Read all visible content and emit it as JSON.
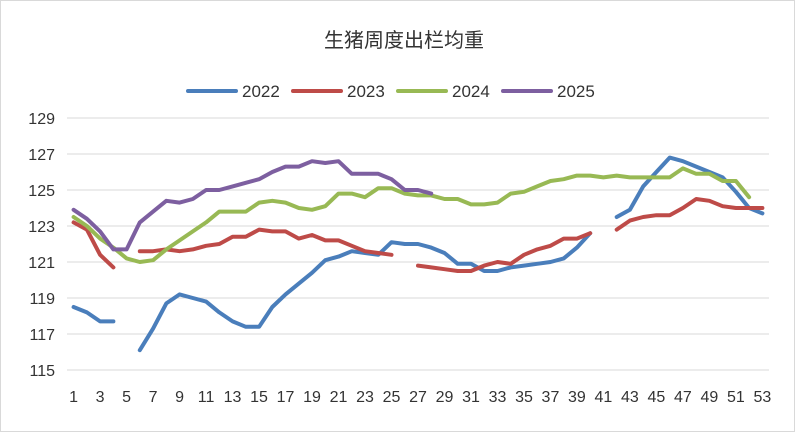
{
  "chart_data": {
    "type": "line",
    "title": "生猪周度出栏均重",
    "xlabel": "",
    "ylabel": "",
    "ylim": [
      115,
      129
    ],
    "yticks": [
      115,
      117,
      119,
      121,
      123,
      125,
      127,
      129
    ],
    "xlim": [
      1,
      53
    ],
    "xticks": [
      1,
      3,
      5,
      7,
      9,
      11,
      13,
      15,
      17,
      19,
      21,
      23,
      25,
      27,
      29,
      31,
      33,
      35,
      37,
      39,
      41,
      43,
      45,
      47,
      49,
      51,
      53
    ],
    "grid": true,
    "legend_position": "top",
    "series": [
      {
        "name": "2022",
        "color": "#4a7ebb",
        "values": [
          null,
          118.5,
          118.2,
          117.7,
          117.7,
          null,
          116.1,
          117.3,
          118.7,
          119.2,
          119.0,
          118.8,
          118.2,
          117.7,
          117.4,
          117.4,
          118.5,
          119.2,
          119.8,
          120.4,
          121.1,
          121.3,
          121.6,
          121.5,
          121.4,
          122.1,
          122.0,
          122.0,
          121.8,
          121.5,
          120.9,
          120.9,
          120.5,
          120.5,
          120.7,
          120.8,
          120.9,
          121.0,
          121.2,
          121.8,
          122.6,
          null,
          123.5,
          123.9,
          125.2,
          126.0,
          126.8,
          126.6,
          126.3,
          126.0,
          125.7,
          124.9,
          124.0,
          123.7
        ]
      },
      {
        "name": "2023",
        "color": "#be4b48",
        "values": [
          null,
          123.2,
          122.8,
          121.4,
          120.7,
          null,
          121.6,
          121.6,
          121.7,
          121.6,
          121.7,
          121.9,
          122.0,
          122.4,
          122.4,
          122.8,
          122.7,
          122.7,
          122.3,
          122.5,
          122.2,
          122.2,
          121.9,
          121.6,
          121.5,
          121.4,
          null,
          120.8,
          120.7,
          120.6,
          120.5,
          120.5,
          120.8,
          121.0,
          120.9,
          121.4,
          121.7,
          121.9,
          122.3,
          122.3,
          122.6,
          null,
          122.8,
          123.3,
          123.5,
          123.6,
          123.6,
          124.0,
          124.5,
          124.4,
          124.1,
          124.0,
          124.0,
          124.0
        ]
      },
      {
        "name": "2024",
        "color": "#98b954",
        "values": [
          null,
          123.5,
          123.0,
          122.3,
          121.8,
          121.2,
          121.0,
          121.1,
          121.7,
          122.2,
          122.7,
          123.2,
          123.8,
          123.8,
          123.8,
          124.3,
          124.4,
          124.3,
          124.0,
          123.9,
          124.1,
          124.8,
          124.8,
          124.6,
          125.1,
          125.1,
          124.8,
          124.7,
          124.7,
          124.5,
          124.5,
          124.2,
          124.2,
          124.3,
          124.8,
          124.9,
          125.2,
          125.5,
          125.6,
          125.8,
          125.8,
          125.7,
          125.8,
          125.7,
          125.7,
          125.7,
          125.7,
          126.2,
          125.9,
          125.9,
          125.5,
          125.5,
          124.6,
          null
        ]
      },
      {
        "name": "2025",
        "color": "#7d5fa0",
        "values": [
          null,
          123.9,
          123.4,
          122.7,
          121.7,
          121.7,
          123.2,
          123.8,
          124.4,
          124.3,
          124.5,
          125.0,
          125.0,
          125.2,
          125.4,
          125.6,
          126.0,
          126.3,
          126.3,
          126.6,
          126.5,
          126.6,
          125.9,
          125.9,
          125.9,
          125.6,
          125.0,
          125.0,
          124.8
        ]
      }
    ]
  }
}
